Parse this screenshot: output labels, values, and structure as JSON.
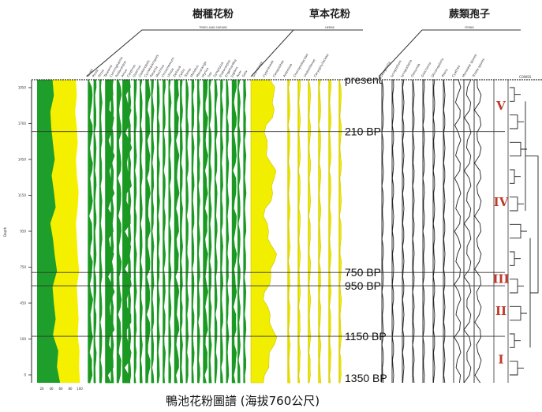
{
  "chart_data": {
    "type": "area",
    "title": "鴨池花粉圖譜 (海拔760公尺)",
    "groups": [
      {
        "title": "樹種花粉",
        "subtitle": "TREES AND SHRUBS"
      },
      {
        "title": "草本花粉",
        "subtitle": "HERBS"
      },
      {
        "title": "蕨類孢子",
        "subtitle": "FERNS"
      }
    ],
    "horizons": [
      {
        "label": "present",
        "depth": 0
      },
      {
        "label": "210 BP",
        "depth": 195
      },
      {
        "label": "750 BP",
        "depth": 725
      },
      {
        "label": "950 BP",
        "depth": 775
      },
      {
        "label": "1150 BP",
        "depth": 965
      },
      {
        "label": "1350 BP",
        "depth": 1140
      }
    ],
    "zones": [
      {
        "label": "V",
        "depth_top": 0,
        "depth_bottom": 195
      },
      {
        "label": "IV",
        "depth_top": 195,
        "depth_bottom": 725
      },
      {
        "label": "III",
        "depth_top": 725,
        "depth_bottom": 775
      },
      {
        "label": "II",
        "depth_top": 775,
        "depth_bottom": 965
      },
      {
        "label": "I",
        "depth_top": 965,
        "depth_bottom": 1140
      }
    ],
    "left_axis": {
      "label": "Depth",
      "ticks": [
        "1950",
        "1700",
        "1450",
        "1150",
        "950",
        "750",
        "450",
        "100",
        "0"
      ]
    },
    "summary_axis_ticks": [
      "20",
      "40",
      "60",
      "80",
      "100"
    ],
    "summary_depths": [
      0,
      60,
      120,
      180,
      240,
      300,
      360,
      420,
      480,
      540,
      600,
      660,
      720,
      780,
      840,
      900,
      960,
      1020,
      1080,
      1140
    ],
    "summary_series": [
      {
        "name": "Trees and shrubs",
        "values": [
          35,
          38,
          30,
          32,
          36,
          40,
          33,
          38,
          42,
          30,
          36,
          40,
          45,
          35,
          38,
          42,
          36,
          48,
          45,
          52
        ],
        "color": "#1e9e2a"
      },
      {
        "name": "Herbs",
        "values": [
          88,
          90,
          86,
          90,
          92,
          88,
          90,
          94,
          92,
          88,
          90,
          92,
          95,
          90,
          92,
          94,
          92,
          96,
          95,
          97
        ],
        "color": "#f5f000"
      }
    ],
    "column_labels": [
      "Tsuga",
      "Picea",
      "Pinus",
      "Taiwania",
      "Cunninghamia",
      "Podocarpus",
      "Alnus",
      "Carpinus",
      "Quercus",
      "Castanopsis",
      "Cyclobalanopsis",
      "Pasania",
      "Machilus",
      "Cinnamomum",
      "Ulmus",
      "Zelkova",
      "Celtis",
      "Trema",
      "Mallotus",
      "Macaranga",
      "Myrica",
      "Ilex",
      "Symplocos",
      "Elaeocarpus",
      "Engelhardtia",
      "Juglans",
      "Acer",
      "Salix",
      "Gramineae",
      "Cyperaceae",
      "Compositae",
      "Artemisia",
      "Chenopodiaceae",
      "Umbelliferae",
      "Caryophyllaceae",
      "Selaginella",
      "Lycopodium",
      "Lycopodiella",
      "Osmunda",
      "Gleichenia",
      "Dicranopteris",
      "Pteris",
      "Cyathea",
      "Monolete spores",
      "Trilete spores"
    ],
    "cluster_label": "CONISS"
  }
}
